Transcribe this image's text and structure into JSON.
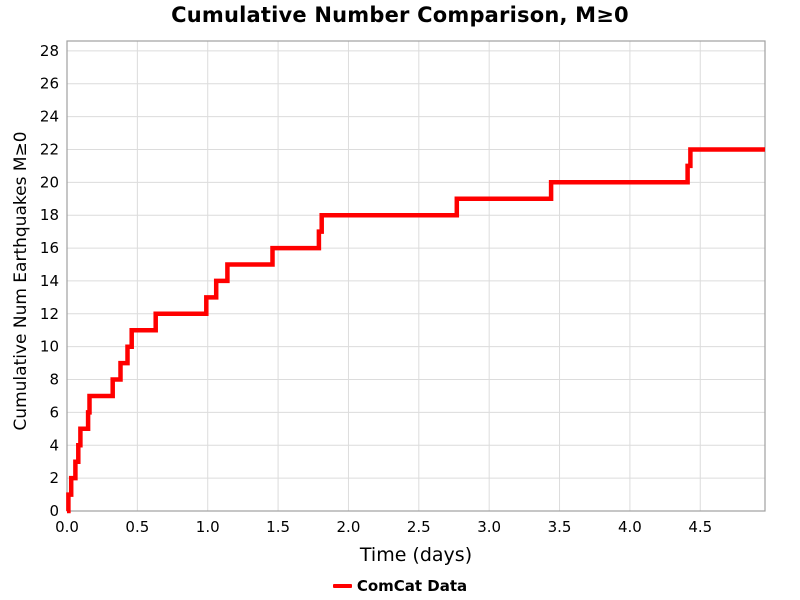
{
  "figure": {
    "title": "Cumulative Number Comparison, M≥0",
    "xlabel": "Time (days)",
    "ylabel": "Cumulative Num Earthquakes M≥0",
    "legend_label": "ComCat Data"
  },
  "colors": {
    "series": "#ff0000",
    "grid": "#dcdcdc",
    "spine": "#a0a0a0",
    "text": "#000000",
    "background": "#ffffff"
  },
  "chart_data": {
    "type": "line",
    "step_mode": "post",
    "title": "Cumulative Number Comparison, M≥0",
    "xlabel": "Time (days)",
    "ylabel": "Cumulative Num Earthquakes M≥0",
    "grid": true,
    "legend_position": "below-axes",
    "xlim": [
      0,
      4.96
    ],
    "ylim": [
      0,
      28.6
    ],
    "xticks": [
      0.0,
      0.5,
      1.0,
      1.5,
      2.0,
      2.5,
      3.0,
      3.5,
      4.0,
      4.5
    ],
    "xtick_labels": [
      "0.0",
      "0.5",
      "1.0",
      "1.5",
      "2.0",
      "2.5",
      "3.0",
      "3.5",
      "4.0",
      "4.5"
    ],
    "yticks": [
      0,
      2,
      4,
      6,
      8,
      10,
      12,
      14,
      16,
      18,
      20,
      22,
      24,
      26,
      28
    ],
    "ytick_labels": [
      "0",
      "2",
      "4",
      "6",
      "8",
      "10",
      "12",
      "14",
      "16",
      "18",
      "20",
      "22",
      "24",
      "26",
      "28"
    ],
    "series": [
      {
        "name": "ComCat Data",
        "color": "#ff0000",
        "line_width": 4.5,
        "points": [
          [
            0.0,
            0
          ],
          [
            0.01,
            1
          ],
          [
            0.03,
            2
          ],
          [
            0.06,
            3
          ],
          [
            0.08,
            4
          ],
          [
            0.095,
            5
          ],
          [
            0.15,
            6
          ],
          [
            0.16,
            7
          ],
          [
            0.325,
            8
          ],
          [
            0.38,
            9
          ],
          [
            0.43,
            10
          ],
          [
            0.46,
            11
          ],
          [
            0.63,
            12
          ],
          [
            0.99,
            13
          ],
          [
            1.06,
            14
          ],
          [
            1.14,
            15
          ],
          [
            1.46,
            16
          ],
          [
            1.79,
            17
          ],
          [
            1.81,
            18
          ],
          [
            2.77,
            19
          ],
          [
            3.44,
            20
          ],
          [
            4.41,
            21
          ],
          [
            4.43,
            22
          ],
          [
            4.96,
            22
          ]
        ]
      }
    ]
  }
}
